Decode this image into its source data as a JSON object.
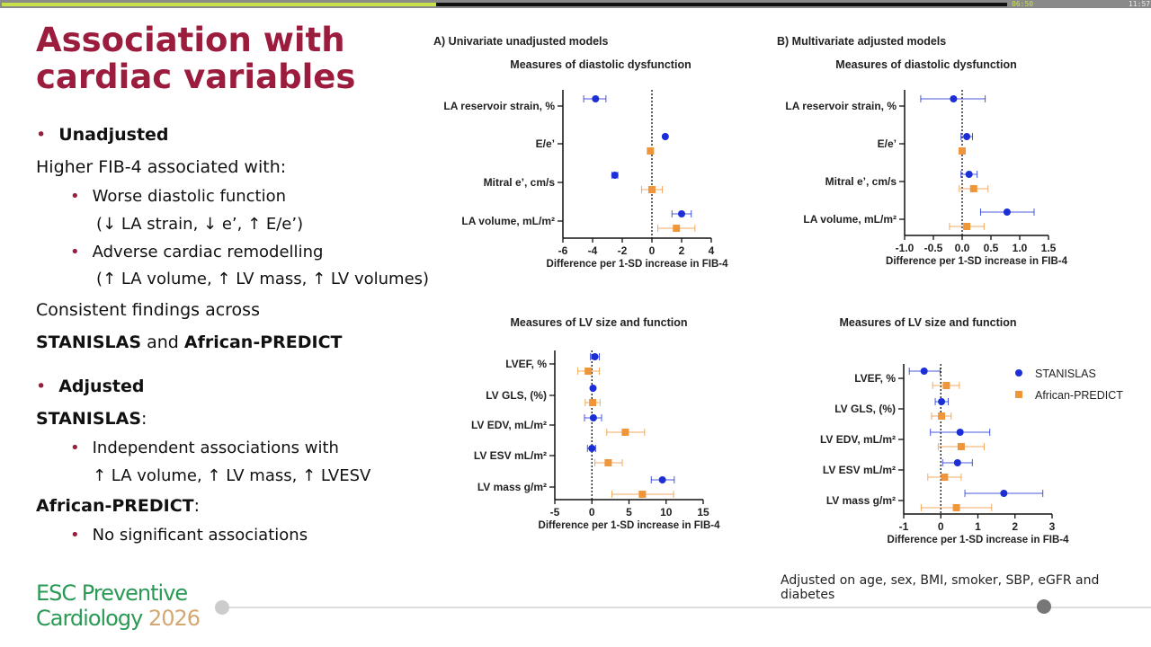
{
  "player": {
    "elapsed": "06:50",
    "total": "11:57",
    "progress": 0.572
  },
  "slide": {
    "title_line1": "Association with",
    "title_line2": "cardiac variables",
    "unadjusted": "Unadjusted",
    "higher": "Higher FIB-4 associated with:",
    "worse": "Worse diastolic function",
    "worse_detail": "(↓ LA strain, ↓ e’, ↑ E/e’)",
    "adverse": "Adverse cardiac remodelling",
    "adverse_detail": "(↑ LA volume, ↑ LV mass, ↑ LV volumes)",
    "consistent": "Consistent findings across",
    "stan": "STANISLAS",
    "and": " and ",
    "afr": "African-PREDICT",
    "adjusted": "Adjusted",
    "stan_colon": "STANISLAS",
    "colon": ":",
    "indep": "Independent associations with",
    "indep_detail": "↑ LA volume, ↑ LV mass, ↑ LVESV",
    "afr_colon": "African-PREDICT",
    "nosig": "No significant associations",
    "note": "Adjusted on age, sex, BMI, smoker, SBP, eGFR and diabetes",
    "logo_line1": "ESC Preventive",
    "logo_line2": "Cardiology",
    "logo_year": "2026",
    "bullet": "•"
  },
  "colors": {
    "stanislas": "#1c2fd6",
    "african": "#f0963a",
    "title": "#9b1c3c"
  },
  "chart_data": [
    {
      "type": "forest",
      "panel": "A) Univariate unadjusted models",
      "title": "Measures of diastolic dysfunction",
      "xlabel": "Difference per 1-SD increase in FIB-4",
      "xlim": [
        -6,
        4
      ],
      "ticks": [
        -6,
        -4,
        -2,
        0,
        2,
        4
      ],
      "tick_labels": [
        "-6",
        "-4",
        "-2",
        "0",
        "2",
        "4"
      ],
      "categories": [
        "LA reservoir strain, %",
        "E/e’",
        "Mitral e’, cm/s",
        "LA volume, mL/m²"
      ],
      "series": [
        {
          "name": "STANISLAS",
          "values": [
            [
              -3.8,
              -4.6,
              -3.1
            ],
            [
              0.9,
              0.85,
              0.95
            ],
            [
              -2.5,
              -2.7,
              -2.3
            ],
            [
              2.0,
              1.35,
              2.65
            ]
          ]
        },
        {
          "name": "African-PREDICT",
          "values": [
            null,
            [
              -0.1,
              -0.25,
              0.05
            ],
            [
              0,
              -0.7,
              0.7
            ],
            [
              1.65,
              0.4,
              2.9
            ]
          ]
        }
      ]
    },
    {
      "type": "forest",
      "panel": "B) Multivariate adjusted models",
      "title": "Measures of diastolic dysfunction",
      "xlabel": "Difference per 1-SD increase in FIB-4",
      "xlim": [
        -1,
        1.5
      ],
      "ticks": [
        -1,
        -0.5,
        0,
        0.5,
        1,
        1.5
      ],
      "tick_labels": [
        "-1.0",
        "-0.5",
        "0.0",
        "0.5",
        "1.0",
        "1.5"
      ],
      "categories": [
        "LA reservoir strain, %",
        "E/e’",
        "Mitral e’, cm/s",
        "LA volume, mL/m²"
      ],
      "series": [
        {
          "name": "STANISLAS",
          "values": [
            [
              -0.15,
              -0.72,
              0.4
            ],
            [
              0.08,
              -0.02,
              0.18
            ],
            [
              0.12,
              -0.02,
              0.26
            ],
            [
              0.78,
              0.32,
              1.25
            ]
          ]
        },
        {
          "name": "African-PREDICT",
          "values": [
            null,
            [
              0,
              -0.05,
              0.05
            ],
            [
              0.2,
              -0.05,
              0.45
            ],
            [
              0.08,
              -0.22,
              0.38
            ]
          ]
        }
      ]
    },
    {
      "type": "forest",
      "panel": "",
      "title": "Measures of LV size and function",
      "xlabel": "Difference per 1-SD increase in FIB-4",
      "xlim": [
        -5,
        15
      ],
      "ticks": [
        -5,
        0,
        5,
        10,
        15
      ],
      "tick_labels": [
        "-5",
        "0",
        "5",
        "10",
        "15"
      ],
      "categories": [
        "LVEF, %",
        "LV GLS, (%)",
        "LV EDV, mL/m²",
        "LV ESV mL/m²",
        "LV mass g/m²"
      ],
      "series": [
        {
          "name": "STANISLAS",
          "values": [
            [
              0.4,
              -0.2,
              1.0
            ],
            [
              0.15,
              0.05,
              0.25
            ],
            [
              0.2,
              -1.0,
              1.3
            ],
            [
              0,
              -0.6,
              0.5
            ],
            [
              9.5,
              8.0,
              11.1
            ]
          ]
        },
        {
          "name": "African-PREDICT",
          "values": [
            [
              -0.5,
              -1.9,
              1.0
            ],
            [
              0.1,
              -0.9,
              1.1
            ],
            [
              4.5,
              2.0,
              7.1
            ],
            [
              2.2,
              0.4,
              4.1
            ],
            [
              6.8,
              2.7,
              11.0
            ]
          ]
        }
      ]
    },
    {
      "type": "forest",
      "panel": "",
      "title": "Measures of LV size and function",
      "xlabel": "Difference per 1-SD increase in FIB-4",
      "xlim": [
        -1,
        3
      ],
      "ticks": [
        -1,
        0,
        1,
        2,
        3
      ],
      "tick_labels": [
        "-1",
        "0",
        "1",
        "2",
        "3"
      ],
      "categories": [
        "LVEF, %",
        "LV GLS, (%)",
        "LV EDV, mL/m²",
        "LV ESV mL/m²",
        "LV mass g/m²"
      ],
      "series": [
        {
          "name": "STANISLAS",
          "values": [
            [
              -0.45,
              -0.85,
              -0.02
            ],
            [
              0.02,
              -0.15,
              0.2
            ],
            [
              0.52,
              -0.28,
              1.32
            ],
            [
              0.45,
              0.05,
              0.85
            ],
            [
              1.7,
              0.65,
              2.75
            ]
          ]
        },
        {
          "name": "African-PREDICT",
          "values": [
            [
              0.15,
              -0.22,
              0.5
            ],
            [
              0.02,
              -0.25,
              0.28
            ],
            [
              0.55,
              -0.07,
              1.17
            ],
            [
              0.1,
              -0.35,
              0.55
            ],
            [
              0.42,
              -0.53,
              1.37
            ]
          ]
        }
      ],
      "legend": [
        "STANISLAS",
        "African-PREDICT"
      ],
      "legend_position": "top-right"
    }
  ]
}
